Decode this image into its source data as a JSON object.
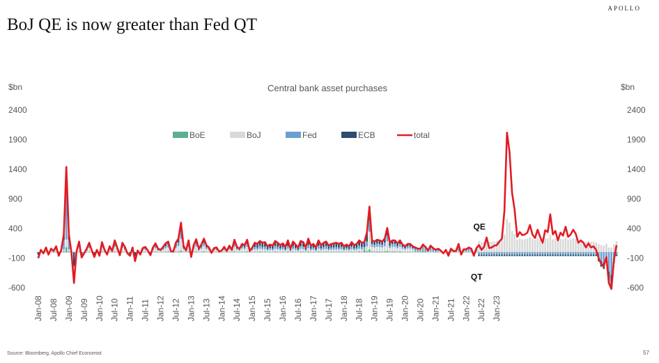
{
  "header": {
    "brand": "APOLLO",
    "title": "BoJ QE is now greater than Fed QT"
  },
  "footer": {
    "source": "Source: Bloomberg, Apollo Chief Economist",
    "page": "57"
  },
  "chart_data": {
    "type": "bar",
    "subtitle": "Central bank asset purchases",
    "ylabel_left": "$bn",
    "ylabel_right": "$bn",
    "ylim": [
      -600,
      2400
    ],
    "yticks": [
      "2400",
      "1900",
      "1400",
      "900",
      "400",
      "-100",
      "-600"
    ],
    "ytick_values": [
      2400,
      1900,
      1400,
      900,
      400,
      -100,
      -600
    ],
    "xtick_labels": [
      "Jan-08",
      "Jul-08",
      "Jan-09",
      "Jul-09",
      "Jan-10",
      "Jul-10",
      "Jan-11",
      "Jul-11",
      "Jan-12",
      "Jul-12",
      "Jan-13",
      "Jul-13",
      "Jan-14",
      "Jul-14",
      "Jan-15",
      "Jul-15",
      "Jan-16",
      "Jul-16",
      "Jan-17",
      "Jul-17",
      "Jan-18",
      "Jul-18",
      "Jan-19",
      "Jul-19",
      "Jan-20",
      "Jul-20",
      "Jan-21",
      "Jul-21",
      "Jan-22",
      "Jul-22",
      "Jan-23"
    ],
    "legend": [
      {
        "name": "BoE",
        "color": "#5fae8f",
        "kind": "bar"
      },
      {
        "name": "BoJ",
        "color": "#d9d9d9",
        "kind": "bar"
      },
      {
        "name": "Fed",
        "color": "#6b9fcf",
        "kind": "bar"
      },
      {
        "name": "ECB",
        "color": "#2f4b6e",
        "kind": "bar"
      },
      {
        "name": "total",
        "color": "#e31b23",
        "kind": "line"
      }
    ],
    "annotations": [
      {
        "text": "QE",
        "x_index": 173,
        "y": 430
      },
      {
        "text": "QT",
        "x_index": 172,
        "y": -420
      }
    ],
    "start": "Jan-08",
    "total": [
      -100,
      40,
      -20,
      80,
      -40,
      60,
      20,
      100,
      -60,
      40,
      300,
      1440,
      300,
      0,
      -520,
      10,
      180,
      -90,
      -20,
      60,
      160,
      30,
      -80,
      40,
      -60,
      170,
      40,
      -40,
      100,
      20,
      200,
      80,
      -50,
      160,
      90,
      -20,
      -60,
      80,
      -150,
      30,
      -40,
      70,
      90,
      30,
      -50,
      80,
      150,
      60,
      40,
      90,
      150,
      180,
      20,
      10,
      160,
      230,
      500,
      110,
      30,
      200,
      -80,
      120,
      220,
      60,
      130,
      230,
      120,
      80,
      -10,
      70,
      80,
      10,
      30,
      90,
      20,
      110,
      40,
      210,
      90,
      60,
      140,
      120,
      210,
      20,
      80,
      160,
      140,
      190,
      160,
      170,
      100,
      130,
      110,
      190,
      160,
      120,
      150,
      90,
      200,
      60,
      180,
      130,
      80,
      190,
      170,
      80,
      230,
      110,
      140,
      80,
      200,
      120,
      160,
      180,
      110,
      140,
      150,
      160,
      140,
      160,
      100,
      130,
      100,
      170,
      120,
      140,
      200,
      160,
      170,
      330,
      770,
      200,
      180,
      210,
      200,
      180,
      230,
      410,
      160,
      200,
      200,
      150,
      200,
      130,
      100,
      140,
      140,
      100,
      80,
      60,
      60,
      130,
      90,
      30,
      110,
      70,
      40,
      60,
      30,
      -20,
      40,
      -60,
      60,
      20,
      20,
      140,
      -40,
      50,
      50,
      80,
      60,
      -60,
      70,
      120,
      40,
      90,
      250,
      70,
      80,
      110,
      120,
      180,
      230,
      700,
      2020,
      1700,
      1000,
      720,
      260,
      340,
      290,
      300,
      330,
      460,
      300,
      240,
      380,
      260,
      160,
      370,
      340,
      640,
      300,
      360,
      200,
      330,
      280,
      430,
      260,
      300,
      380,
      310,
      160,
      200,
      160,
      80,
      150,
      80,
      100,
      40,
      -100,
      -200,
      -240,
      -80,
      -520,
      -620,
      -130,
      120
    ]
  }
}
